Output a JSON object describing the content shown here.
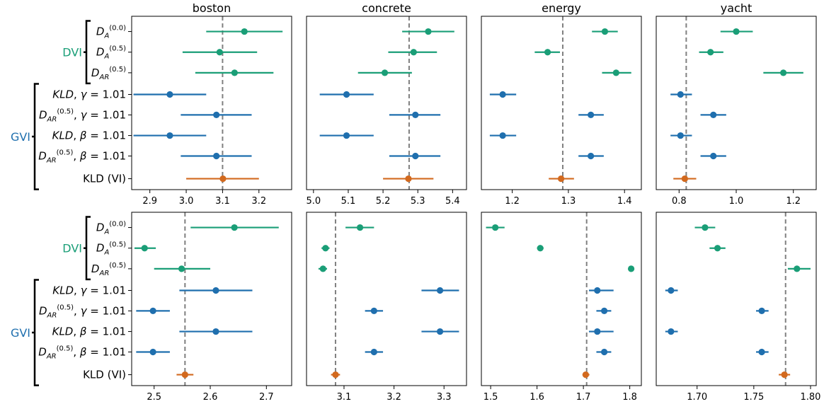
{
  "colors": {
    "dvi": "#1a9e77",
    "gvi": "#1f6fae",
    "vi": "#d2691e",
    "reference": "#808080"
  },
  "groups": [
    {
      "name": "DVI",
      "color": "#1a9e77",
      "rows": [
        0,
        2
      ]
    },
    {
      "name": "GVI",
      "color": "#1f6fae",
      "rows": [
        3,
        7
      ]
    }
  ],
  "row_labels": [
    {
      "id": "dA00",
      "parts": [
        [
          "D",
          "it"
        ],
        [
          "A",
          "sub"
        ],
        [
          "(0.0)",
          "sup"
        ]
      ]
    },
    {
      "id": "dA05",
      "parts": [
        [
          "D",
          "it"
        ],
        [
          "A",
          "sub"
        ],
        [
          "(0.5)",
          "sup"
        ]
      ]
    },
    {
      "id": "dAR05",
      "parts": [
        [
          "D",
          "it"
        ],
        [
          "AR",
          "sub"
        ],
        [
          "(0.5)",
          "sup"
        ]
      ]
    },
    {
      "id": "kld-gamma",
      "parts": [
        [
          "KLD",
          "it"
        ],
        [
          ", ",
          ""
        ],
        [
          "γ",
          "it"
        ],
        [
          " = 1.01",
          ""
        ]
      ]
    },
    {
      "id": "dAR-gamma",
      "parts": [
        [
          "D",
          "it"
        ],
        [
          "AR",
          "sub"
        ],
        [
          "(0.5)",
          "sup"
        ],
        [
          ", ",
          ""
        ],
        [
          "γ",
          "it"
        ],
        [
          " = 1.01",
          ""
        ]
      ]
    },
    {
      "id": "kld-beta",
      "parts": [
        [
          "KLD",
          "it"
        ],
        [
          ", ",
          ""
        ],
        [
          "β",
          "it"
        ],
        [
          " = 1.01",
          ""
        ]
      ]
    },
    {
      "id": "dAR-beta",
      "parts": [
        [
          "D",
          "it"
        ],
        [
          "AR",
          "sub"
        ],
        [
          "(0.5)",
          "sup"
        ],
        [
          ", ",
          ""
        ],
        [
          "β",
          "it"
        ],
        [
          " = 1.01",
          ""
        ]
      ]
    },
    {
      "id": "kld-vi",
      "parts": [
        [
          "KLD (VI)",
          ""
        ]
      ]
    }
  ],
  "row_colors": [
    "dvi",
    "dvi",
    "dvi",
    "gvi",
    "gvi",
    "gvi",
    "gvi",
    "vi"
  ],
  "chart_data": [
    {
      "type": "scatter",
      "title": "boston",
      "xlim": [
        2.85,
        3.29
      ],
      "xticks": [
        2.9,
        3.0,
        3.1,
        3.2
      ],
      "xtick_labels": [
        "2.9",
        "3.0",
        "3.1",
        "3.2"
      ],
      "reference": 3.1,
      "points": [
        {
          "value": 3.16,
          "low": 3.055,
          "high": 3.265
        },
        {
          "value": 3.092,
          "low": 2.99,
          "high": 3.195
        },
        {
          "value": 3.133,
          "low": 3.025,
          "high": 3.24
        },
        {
          "value": 2.955,
          "low": 2.855,
          "high": 3.055
        },
        {
          "value": 3.083,
          "low": 2.985,
          "high": 3.18
        },
        {
          "value": 2.955,
          "low": 2.855,
          "high": 3.055
        },
        {
          "value": 3.083,
          "low": 2.985,
          "high": 3.18
        },
        {
          "value": 3.101,
          "low": 3.0,
          "high": 3.2
        }
      ]
    },
    {
      "type": "scatter",
      "title": "concrete",
      "xlim": [
        4.98,
        5.44
      ],
      "xticks": [
        5.0,
        5.1,
        5.2,
        5.3,
        5.4
      ],
      "xtick_labels": [
        "5.0",
        "5.1",
        "5.2",
        "5.3",
        "5.4"
      ],
      "reference": 5.275,
      "points": [
        {
          "value": 5.33,
          "low": 5.255,
          "high": 5.405
        },
        {
          "value": 5.288,
          "low": 5.215,
          "high": 5.355
        },
        {
          "value": 5.205,
          "low": 5.128,
          "high": 5.283
        },
        {
          "value": 5.095,
          "low": 5.018,
          "high": 5.173
        },
        {
          "value": 5.293,
          "low": 5.218,
          "high": 5.365
        },
        {
          "value": 5.095,
          "low": 5.018,
          "high": 5.173
        },
        {
          "value": 5.293,
          "low": 5.218,
          "high": 5.365
        },
        {
          "value": 5.273,
          "low": 5.2,
          "high": 5.345
        }
      ]
    },
    {
      "type": "scatter",
      "title": "energy",
      "xlim": [
        1.145,
        1.43
      ],
      "xticks": [
        1.2,
        1.3,
        1.4
      ],
      "xtick_labels": [
        "1.2",
        "1.3",
        "1.4"
      ],
      "reference": 1.29,
      "points": [
        {
          "value": 1.365,
          "low": 1.342,
          "high": 1.388
        },
        {
          "value": 1.263,
          "low": 1.24,
          "high": 1.285
        },
        {
          "value": 1.385,
          "low": 1.36,
          "high": 1.412
        },
        {
          "value": 1.183,
          "low": 1.16,
          "high": 1.207
        },
        {
          "value": 1.34,
          "low": 1.318,
          "high": 1.363
        },
        {
          "value": 1.183,
          "low": 1.16,
          "high": 1.207
        },
        {
          "value": 1.34,
          "low": 1.318,
          "high": 1.363
        },
        {
          "value": 1.287,
          "low": 1.265,
          "high": 1.31
        }
      ]
    },
    {
      "type": "scatter",
      "title": "yacht",
      "xlim": [
        0.72,
        1.28
      ],
      "xticks": [
        0.8,
        1.0,
        1.2
      ],
      "xtick_labels": [
        "0.8",
        "1.0",
        "1.2"
      ],
      "reference": 0.825,
      "points": [
        {
          "value": 1.0,
          "low": 0.945,
          "high": 1.058
        },
        {
          "value": 0.91,
          "low": 0.87,
          "high": 0.955
        },
        {
          "value": 1.165,
          "low": 1.095,
          "high": 1.235
        },
        {
          "value": 0.805,
          "low": 0.77,
          "high": 0.845
        },
        {
          "value": 0.92,
          "low": 0.875,
          "high": 0.965
        },
        {
          "value": 0.805,
          "low": 0.77,
          "high": 0.845
        },
        {
          "value": 0.92,
          "low": 0.875,
          "high": 0.965
        },
        {
          "value": 0.82,
          "low": 0.78,
          "high": 0.86
        }
      ]
    },
    {
      "type": "scatter",
      "title": "",
      "xlim": [
        2.46,
        2.745
      ],
      "xticks": [
        2.5,
        2.6,
        2.7
      ],
      "xtick_labels": [
        "2.5",
        "2.6",
        "2.7"
      ],
      "reference": 2.555,
      "points": [
        {
          "value": 2.643,
          "low": 2.565,
          "high": 2.722
        },
        {
          "value": 2.483,
          "low": 2.465,
          "high": 2.503
        },
        {
          "value": 2.549,
          "low": 2.5,
          "high": 2.6
        },
        {
          "value": 2.61,
          "low": 2.545,
          "high": 2.675
        },
        {
          "value": 2.498,
          "low": 2.468,
          "high": 2.528
        },
        {
          "value": 2.61,
          "low": 2.545,
          "high": 2.675
        },
        {
          "value": 2.498,
          "low": 2.468,
          "high": 2.528
        },
        {
          "value": 2.555,
          "low": 2.54,
          "high": 2.57
        }
      ]
    },
    {
      "type": "scatter",
      "title": "",
      "xlim": [
        3.025,
        3.345
      ],
      "xticks": [
        3.1,
        3.2,
        3.3
      ],
      "xtick_labels": [
        "3.1",
        "3.2",
        "3.3"
      ],
      "reference": 3.083,
      "points": [
        {
          "value": 3.132,
          "low": 3.103,
          "high": 3.16
        },
        {
          "value": 3.063,
          "low": 3.055,
          "high": 3.071
        },
        {
          "value": 3.058,
          "low": 3.049,
          "high": 3.066
        },
        {
          "value": 3.292,
          "low": 3.255,
          "high": 3.33
        },
        {
          "value": 3.16,
          "low": 3.142,
          "high": 3.178
        },
        {
          "value": 3.292,
          "low": 3.255,
          "high": 3.33
        },
        {
          "value": 3.16,
          "low": 3.142,
          "high": 3.178
        },
        {
          "value": 3.083,
          "low": 3.074,
          "high": 3.092
        }
      ]
    },
    {
      "type": "scatter",
      "title": "",
      "xlim": [
        1.48,
        1.825
      ],
      "xticks": [
        1.5,
        1.6,
        1.7,
        1.8
      ],
      "xtick_labels": [
        "1.5",
        "1.6",
        "1.7",
        "1.8"
      ],
      "reference": 1.707,
      "points": [
        {
          "value": 1.51,
          "low": 1.49,
          "high": 1.53
        },
        {
          "value": 1.607,
          "low": 1.6,
          "high": 1.614
        },
        {
          "value": 1.803,
          "low": 1.798,
          "high": 1.808
        },
        {
          "value": 1.73,
          "low": 1.712,
          "high": 1.765
        },
        {
          "value": 1.745,
          "low": 1.728,
          "high": 1.76
        },
        {
          "value": 1.73,
          "low": 1.712,
          "high": 1.765
        },
        {
          "value": 1.745,
          "low": 1.728,
          "high": 1.76
        },
        {
          "value": 1.705,
          "low": 1.698,
          "high": 1.713
        }
      ]
    },
    {
      "type": "scatter",
      "title": "",
      "xlim": [
        1.664,
        1.805
      ],
      "xticks": [
        1.7,
        1.75,
        1.8
      ],
      "xtick_labels": [
        "1.70",
        "1.75",
        "1.80"
      ],
      "reference": 1.778,
      "points": [
        {
          "value": 1.707,
          "low": 1.698,
          "high": 1.716
        },
        {
          "value": 1.718,
          "low": 1.711,
          "high": 1.725
        },
        {
          "value": 1.788,
          "low": 1.78,
          "high": 1.8
        },
        {
          "value": 1.677,
          "low": 1.672,
          "high": 1.683
        },
        {
          "value": 1.757,
          "low": 1.752,
          "high": 1.763
        },
        {
          "value": 1.677,
          "low": 1.672,
          "high": 1.683
        },
        {
          "value": 1.757,
          "low": 1.752,
          "high": 1.763
        },
        {
          "value": 1.777,
          "low": 1.772,
          "high": 1.782
        }
      ]
    }
  ]
}
